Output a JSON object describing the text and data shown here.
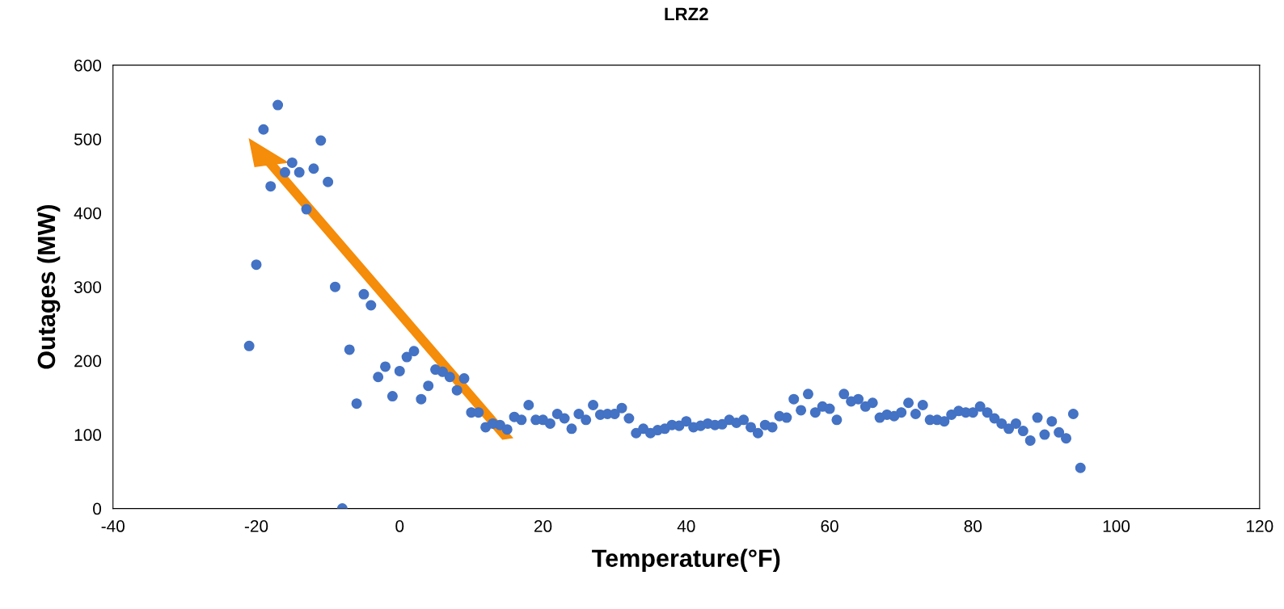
{
  "chart_data": {
    "type": "scatter",
    "title": "LRZ2",
    "xlabel": "Temperature(°F)",
    "ylabel": "Outages (MW)",
    "x": [
      -21,
      -20,
      -19,
      -18,
      -17,
      -16,
      -15,
      -14,
      -13,
      -12,
      -11,
      -10,
      -9,
      -8,
      -7,
      -6,
      -5,
      -4,
      -3,
      -2,
      -1,
      0,
      1,
      2,
      3,
      4,
      5,
      6,
      7,
      8,
      9,
      10,
      11,
      12,
      13,
      14,
      15,
      16,
      17,
      18,
      19,
      20,
      21,
      22,
      23,
      24,
      25,
      26,
      27,
      28,
      29,
      30,
      31,
      32,
      33,
      34,
      35,
      36,
      37,
      38,
      39,
      40,
      41,
      42,
      43,
      44,
      45,
      46,
      47,
      48,
      49,
      50,
      51,
      52,
      53,
      54,
      55,
      56,
      57,
      58,
      59,
      60,
      61,
      62,
      63,
      64,
      65,
      66,
      67,
      68,
      69,
      70,
      71,
      72,
      73,
      74,
      75,
      76,
      77,
      78,
      79,
      80,
      81,
      82,
      83,
      84,
      85,
      86,
      87,
      88,
      89,
      90,
      91,
      92,
      93,
      94,
      95
    ],
    "series": [
      {
        "color": "#4472c4",
        "values": [
          220,
          330,
          513,
          436,
          546,
          455,
          468,
          455,
          405,
          460,
          498,
          442,
          300,
          0,
          215,
          142,
          290,
          275,
          178,
          192,
          152,
          186,
          205,
          213,
          148,
          166,
          188,
          185,
          178,
          160,
          176,
          130,
          130,
          110,
          115,
          113,
          107,
          124,
          120,
          140,
          120,
          120,
          115,
          128,
          122,
          108,
          128,
          120,
          140,
          127,
          128,
          128,
          136,
          122,
          102,
          108,
          102,
          106,
          108,
          113,
          112,
          118,
          110,
          112,
          115,
          113,
          114,
          120,
          116,
          120,
          110,
          102,
          113,
          110,
          125,
          123,
          148,
          133,
          155,
          130,
          138,
          135,
          120,
          155,
          145,
          148,
          138,
          143,
          123,
          127,
          125,
          130,
          143,
          128,
          140,
          120,
          120,
          118,
          127,
          132,
          130,
          130,
          138,
          130,
          122,
          115,
          108,
          115,
          105,
          92,
          123,
          100,
          118,
          103,
          95,
          128,
          55
        ]
      }
    ],
    "xlim": [
      -40,
      120
    ],
    "xticks": [
      -40,
      -20,
      0,
      20,
      40,
      60,
      80,
      100,
      120
    ],
    "ylim": [
      0,
      600
    ],
    "yticks": [
      0,
      100,
      200,
      300,
      400,
      500,
      600
    ],
    "grid": false,
    "marker": "circle"
  }
}
